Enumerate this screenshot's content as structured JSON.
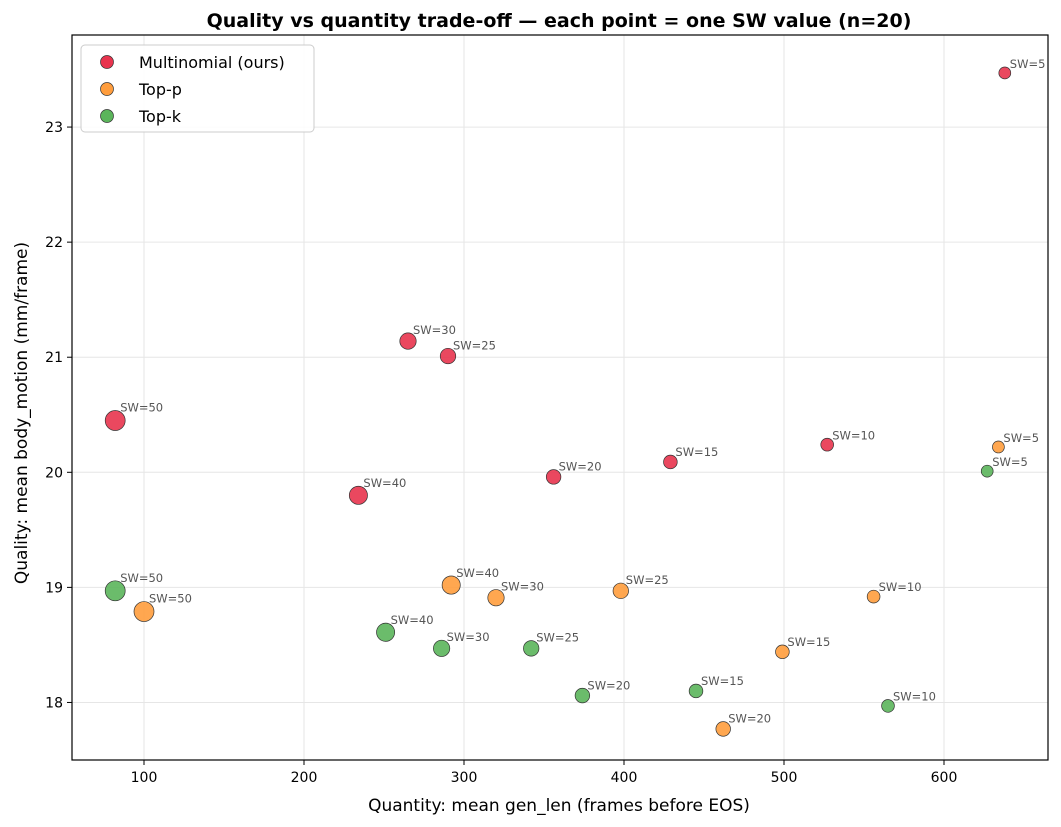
{
  "chart_data": {
    "type": "scatter",
    "title": "Quality vs quantity trade-off — each point = one SW value (n=20)",
    "xlabel": "Quantity: mean gen_len (frames before EOS)",
    "ylabel": "Quality: mean body_motion (mm/frame)",
    "xlim": [
      55,
      665
    ],
    "ylim": [
      17.5,
      23.8
    ],
    "xticks": [
      100,
      200,
      300,
      400,
      500,
      600
    ],
    "yticks": [
      18,
      19,
      20,
      21,
      22,
      23
    ],
    "grid": true,
    "legend_position": "top-left",
    "series": [
      {
        "name": "Multinomial (ours)",
        "color": "#e8344e",
        "points": [
          {
            "x": 638,
            "y": 23.47,
            "label": "SW=5"
          },
          {
            "x": 527,
            "y": 20.24,
            "label": "SW=10"
          },
          {
            "x": 429,
            "y": 20.09,
            "label": "SW=15"
          },
          {
            "x": 356,
            "y": 19.96,
            "label": "SW=20"
          },
          {
            "x": 290,
            "y": 21.01,
            "label": "SW=25"
          },
          {
            "x": 265,
            "y": 21.14,
            "label": "SW=30"
          },
          {
            "x": 234,
            "y": 19.8,
            "label": "SW=40"
          },
          {
            "x": 82,
            "y": 20.45,
            "label": "SW=50"
          }
        ]
      },
      {
        "name": "Top-p",
        "color": "#ff9d3d",
        "points": [
          {
            "x": 634,
            "y": 20.22,
            "label": "SW=5"
          },
          {
            "x": 556,
            "y": 18.92,
            "label": "SW=10"
          },
          {
            "x": 499,
            "y": 18.44,
            "label": "SW=15"
          },
          {
            "x": 462,
            "y": 17.77,
            "label": "SW=20"
          },
          {
            "x": 398,
            "y": 18.97,
            "label": "SW=25"
          },
          {
            "x": 320,
            "y": 18.91,
            "label": "SW=30"
          },
          {
            "x": 292,
            "y": 19.02,
            "label": "SW=40"
          },
          {
            "x": 100,
            "y": 18.79,
            "label": "SW=50"
          }
        ]
      },
      {
        "name": "Top-k",
        "color": "#5bb55b",
        "points": [
          {
            "x": 627,
            "y": 20.01,
            "label": "SW=5"
          },
          {
            "x": 565,
            "y": 17.97,
            "label": "SW=10"
          },
          {
            "x": 445,
            "y": 18.1,
            "label": "SW=15"
          },
          {
            "x": 374,
            "y": 18.06,
            "label": "SW=20"
          },
          {
            "x": 342,
            "y": 18.47,
            "label": "SW=25"
          },
          {
            "x": 286,
            "y": 18.47,
            "label": "SW=30"
          },
          {
            "x": 251,
            "y": 18.61,
            "label": "SW=40"
          },
          {
            "x": 82,
            "y": 18.97,
            "label": "SW=50"
          }
        ]
      }
    ]
  }
}
